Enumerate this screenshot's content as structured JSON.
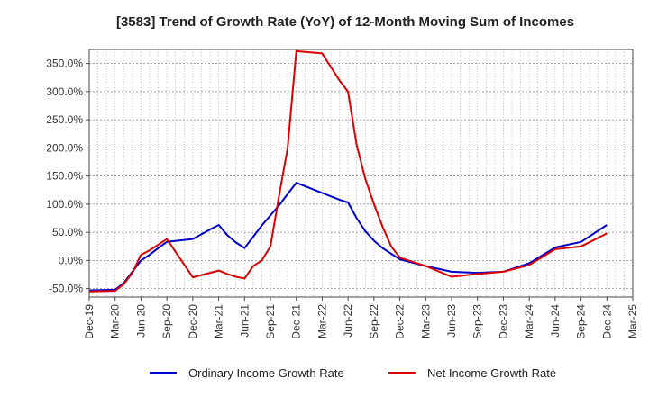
{
  "chart_data": {
    "type": "line",
    "title": "[3583]  Trend of Growth Rate (YoY) of 12-Month Moving Sum of Incomes",
    "xlabel": "",
    "ylabel": "",
    "ylim": [
      -65,
      375
    ],
    "yticks": [
      -50,
      0,
      50,
      100,
      150,
      200,
      250,
      300,
      350
    ],
    "ytick_labels": [
      "-50.0%",
      "0.0%",
      "50.0%",
      "100.0%",
      "150.0%",
      "200.0%",
      "250.0%",
      "300.0%",
      "350.0%"
    ],
    "xlim": [
      "2019-12",
      "2025-03"
    ],
    "xtick_labels": [
      "Dec-19",
      "Mar-20",
      "Jun-20",
      "Sep-20",
      "Dec-20",
      "Mar-21",
      "Jun-21",
      "Sep-21",
      "Dec-21",
      "Mar-22",
      "Jun-22",
      "Sep-22",
      "Dec-22",
      "Mar-23",
      "Jun-23",
      "Sep-23",
      "Dec-23",
      "Mar-24",
      "Jun-24",
      "Sep-24",
      "Dec-24",
      "Mar-25"
    ],
    "grid": true,
    "legend_position": "bottom",
    "colors": {
      "ordinary": "#0000cc",
      "net": "#dd0000"
    },
    "x": [
      "2019-12",
      "2020-03",
      "2020-04",
      "2020-05",
      "2020-06",
      "2020-07",
      "2020-08",
      "2020-09",
      "2020-12",
      "2021-02",
      "2021-03",
      "2021-04",
      "2021-05",
      "2021-06",
      "2021-07",
      "2021-08",
      "2021-09",
      "2021-10",
      "2021-11",
      "2021-12",
      "2022-03",
      "2022-05",
      "2022-06",
      "2022-07",
      "2022-08",
      "2022-09",
      "2022-10",
      "2022-11",
      "2022-12",
      "2023-03",
      "2023-06",
      "2023-09",
      "2023-12",
      "2024-03",
      "2024-06",
      "2024-09",
      "2024-12"
    ],
    "series": [
      {
        "name": "Ordinary Income Growth Rate",
        "color_key": "ordinary",
        "values": [
          -53,
          -52,
          -40,
          -20,
          0,
          10,
          22,
          33,
          38,
          55,
          63,
          45,
          32,
          22,
          42,
          62,
          80,
          98,
          118,
          138,
          120,
          108,
          103,
          75,
          52,
          35,
          22,
          12,
          2,
          -10,
          -20,
          -22,
          -20,
          -5,
          23,
          33,
          63
        ]
      },
      {
        "name": "Net Income Growth Rate",
        "color_key": "net",
        "values": [
          -55,
          -54,
          -42,
          -22,
          10,
          18,
          28,
          38,
          -30,
          -22,
          -18,
          -24,
          -29,
          -32,
          -10,
          0,
          25,
          115,
          200,
          372,
          368,
          320,
          300,
          205,
          145,
          100,
          60,
          25,
          5,
          -10,
          -29,
          -24,
          -20,
          -8,
          20,
          25,
          48
        ]
      }
    ]
  }
}
